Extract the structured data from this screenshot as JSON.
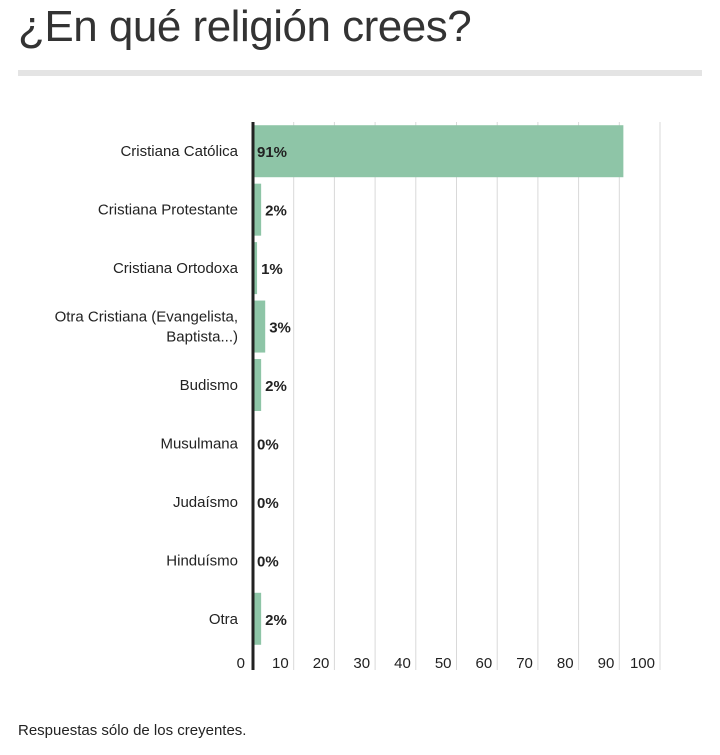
{
  "title": "¿En qué religión crees?",
  "footnote": "Respuestas sólo de los creyentes.",
  "chart_data": {
    "type": "bar",
    "orientation": "horizontal",
    "categories": [
      [
        "Cristiana Católica"
      ],
      [
        "Cristiana Protestante"
      ],
      [
        "Cristiana Ortodoxa"
      ],
      [
        "Otra Cristiana (Evangelista,",
        "Baptista...)"
      ],
      [
        "Budismo"
      ],
      [
        "Musulmana"
      ],
      [
        "Judaísmo"
      ],
      [
        "Hinduísmo"
      ],
      [
        "Otra"
      ]
    ],
    "values": [
      91,
      2,
      1,
      3,
      2,
      0,
      0,
      0,
      2
    ],
    "data_labels": [
      "91%",
      "2%",
      "1%",
      "3%",
      "2%",
      "0%",
      "0%",
      "0%",
      "2%"
    ],
    "xlim": [
      0,
      100
    ],
    "xticks": [
      0,
      10,
      20,
      30,
      40,
      50,
      60,
      70,
      80,
      90,
      100
    ],
    "grid": true,
    "bar_color": "#8ec5a7",
    "grid_color": "#d9d9d9",
    "axis_color": "#222222"
  }
}
